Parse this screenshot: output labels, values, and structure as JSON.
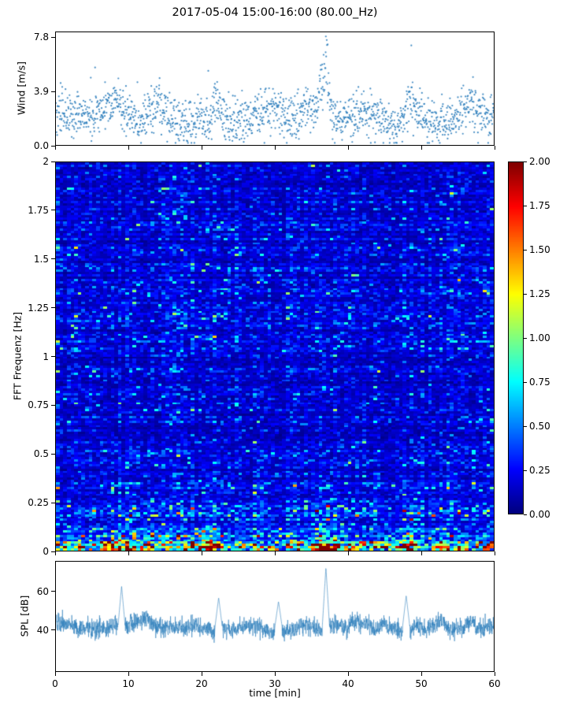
{
  "title": "2017-05-04 15:00-16:00 (80.00_Hz)",
  "xlabel": "time [min]",
  "xticks": {
    "values": [
      0,
      10,
      20,
      30,
      40,
      50,
      60
    ],
    "labels": [
      "0",
      "10",
      "20",
      "30",
      "40",
      "50",
      "60"
    ],
    "range": [
      0,
      60
    ]
  },
  "chart_data": [
    {
      "id": "wind",
      "type": "scatter",
      "ylabel": "Wind [m/s]",
      "x_range": [
        0,
        60
      ],
      "y_range": [
        0,
        8.2
      ],
      "ytick_values": [
        0,
        3.9,
        7.8
      ],
      "ytick_labels": [
        "0.0",
        "3.9",
        "7.8"
      ],
      "marker_color": "#2e7ebc",
      "n_points": 1600,
      "mean": 2.1,
      "std": 0.8,
      "min": 0.15,
      "max": 7.9,
      "gust_events": [
        {
          "t": 37,
          "amp": 5.6,
          "width": 0.5
        },
        {
          "t": 36.3,
          "amp": 2.5,
          "width": 0.3
        },
        {
          "t": 48.5,
          "amp": 2.3,
          "width": 0.6
        },
        {
          "t": 8.5,
          "amp": 1.6,
          "width": 0.5
        },
        {
          "t": 14,
          "amp": 1.5,
          "width": 0.4
        },
        {
          "t": 22,
          "amp": 1.4,
          "width": 0.5
        },
        {
          "t": 57,
          "amp": 1.6,
          "width": 0.4
        }
      ]
    },
    {
      "id": "spectrogram",
      "type": "heatmap",
      "ylabel": "FFT Frequenz [Hz]",
      "x_range": [
        0,
        60
      ],
      "y_range": [
        0,
        2
      ],
      "ytick_values": [
        0,
        0.25,
        0.5,
        0.75,
        1,
        1.25,
        1.5,
        1.75,
        2
      ],
      "ytick_labels": [
        "0",
        "0.25",
        "0.5",
        "0.75",
        "1",
        "1.25",
        "1.5",
        "1.75",
        "2"
      ],
      "colormap": "jet",
      "value_range": [
        0,
        2
      ],
      "colorbar": {
        "tick_values": [
          2,
          1.75,
          1.5,
          1.25,
          1,
          0.75,
          0.5,
          0.25,
          0
        ],
        "tick_labels": [
          "2.00",
          "1.75",
          "1.50",
          "1.25",
          "1.00",
          "0.75",
          "0.50",
          "0.25",
          "0.00"
        ]
      },
      "grid": {
        "rows": 170,
        "cols": 120
      },
      "background_level": 0.2,
      "low_freq_boost": [
        {
          "amp": 0.55,
          "scale": 0.09
        },
        {
          "amp": 1.25,
          "scale": 0.015
        }
      ],
      "events": [
        {
          "t": 9,
          "amp": 1.0,
          "width": 1.6
        },
        {
          "t": 12.5,
          "amp": 0.8,
          "width": 1.2
        },
        {
          "t": 21,
          "amp": 0.9,
          "width": 1.4
        },
        {
          "t": 37,
          "amp": 1.9,
          "width": 1.3
        },
        {
          "t": 48,
          "amp": 1.0,
          "width": 1.8
        },
        {
          "t": 53,
          "amp": 0.6,
          "width": 1.0
        }
      ]
    },
    {
      "id": "spl",
      "type": "line",
      "ylabel": "SPL [dB]",
      "x_range": [
        0,
        60
      ],
      "y_range": [
        18,
        76
      ],
      "ytick_values": [
        40,
        60
      ],
      "ytick_labels": [
        "40",
        "60"
      ],
      "line_color": "#2e7ebc",
      "n_points": 2400,
      "mean": 41.5,
      "std": 2.6,
      "spike_events": [
        {
          "t": 9,
          "peak": 63
        },
        {
          "t": 22.3,
          "peak": 57
        },
        {
          "t": 30.5,
          "peak": 55
        },
        {
          "t": 37,
          "peak": 73
        },
        {
          "t": 48,
          "peak": 58
        }
      ]
    }
  ]
}
